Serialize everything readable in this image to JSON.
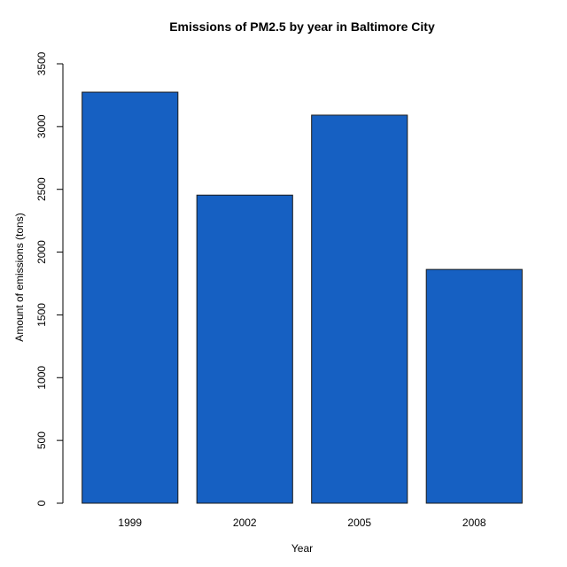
{
  "chart_data": {
    "type": "bar",
    "title": "Emissions of PM2.5 by year in Baltimore City",
    "xlabel": "Year",
    "ylabel": "Amount of emissions (tons)",
    "categories": [
      "1999",
      "2002",
      "2005",
      "2008"
    ],
    "values": [
      3274,
      2454,
      3091,
      1862
    ],
    "ylim": [
      0,
      3500
    ],
    "yticks": [
      0,
      500,
      1000,
      1500,
      2000,
      2500,
      3000,
      3500
    ],
    "grid": false,
    "legend": "none",
    "bar_color": "#1660C2",
    "bar_border_color": "#1a1a1a"
  }
}
